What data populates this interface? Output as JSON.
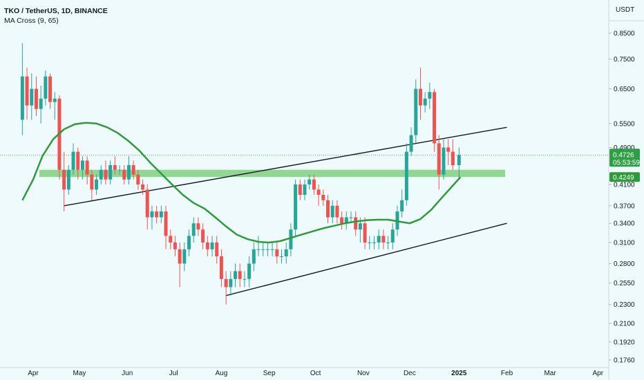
{
  "header": {
    "title": "TKO / TetherUS, 1D, BINANCE",
    "study": "MA Cross (9, 65)"
  },
  "currency": "USDT",
  "chart_data": {
    "type": "candlestick",
    "symbol": "TKO / TetherUS",
    "interval": "1D",
    "exchange": "BINANCE",
    "y_scale": "log",
    "y_ticks": [
      "0.8500",
      "0.7500",
      "0.6500",
      "0.5500",
      "0.4900",
      "0.4100",
      "0.3700",
      "0.3400",
      "0.3100",
      "0.2800",
      "0.2550",
      "0.2300",
      "0.2100",
      "0.1920",
      "0.1760"
    ],
    "x_ticks": [
      "Apr",
      "May",
      "Jun",
      "Jul",
      "Aug",
      "Sep",
      "Oct",
      "Nov",
      "Dec",
      "2025",
      "Feb",
      "Mar",
      "Apr"
    ],
    "last_price": "0.4726",
    "countdown": "05:53:59",
    "ma_value": "0.4249",
    "colors": {
      "up": "#26a69a",
      "down": "#ef5350",
      "ma": "#2e9a3a",
      "zone": "#7fd17f",
      "price_label": "#2f9e44"
    },
    "ohlc": [
      [
        "Mar 25",
        0.56,
        0.81,
        0.52,
        0.69
      ],
      [
        "Mar 28",
        0.69,
        0.72,
        0.56,
        0.6
      ],
      [
        "Mar 31",
        0.6,
        0.7,
        0.56,
        0.65
      ],
      [
        "Apr 3",
        0.65,
        0.69,
        0.57,
        0.59
      ],
      [
        "Apr 6",
        0.59,
        0.66,
        0.55,
        0.62
      ],
      [
        "Apr 9",
        0.62,
        0.71,
        0.6,
        0.69
      ],
      [
        "Apr 12",
        0.69,
        0.7,
        0.59,
        0.61
      ],
      [
        "Apr 15",
        0.61,
        0.64,
        0.56,
        0.62
      ],
      [
        "Apr 18",
        0.62,
        0.63,
        0.42,
        0.44
      ],
      [
        "Apr 21",
        0.44,
        0.48,
        0.36,
        0.4
      ],
      [
        "Apr 24",
        0.4,
        0.45,
        0.39,
        0.44
      ],
      [
        "Apr 27",
        0.44,
        0.5,
        0.43,
        0.48
      ],
      [
        "Apr 30",
        0.48,
        0.49,
        0.42,
        0.44
      ],
      [
        "May 3",
        0.44,
        0.47,
        0.42,
        0.46
      ],
      [
        "May 6",
        0.46,
        0.47,
        0.41,
        0.43
      ],
      [
        "May 9",
        0.43,
        0.44,
        0.38,
        0.4
      ],
      [
        "May 12",
        0.4,
        0.43,
        0.39,
        0.42
      ],
      [
        "May 15",
        0.42,
        0.45,
        0.41,
        0.44
      ],
      [
        "May 18",
        0.44,
        0.46,
        0.41,
        0.42
      ],
      [
        "May 21",
        0.42,
        0.46,
        0.41,
        0.45
      ],
      [
        "May 24",
        0.45,
        0.47,
        0.43,
        0.44
      ],
      [
        "May 27",
        0.44,
        0.45,
        0.43,
        0.44
      ],
      [
        "May 30",
        0.44,
        0.45,
        0.41,
        0.42
      ],
      [
        "Jun 2",
        0.42,
        0.47,
        0.41,
        0.45
      ],
      [
        "Jun 5",
        0.45,
        0.46,
        0.42,
        0.43
      ],
      [
        "Jun 8",
        0.43,
        0.44,
        0.4,
        0.41
      ],
      [
        "Jun 11",
        0.41,
        0.42,
        0.39,
        0.4
      ],
      [
        "Jun 14",
        0.4,
        0.41,
        0.33,
        0.35
      ],
      [
        "Jun 17",
        0.35,
        0.37,
        0.33,
        0.36
      ],
      [
        "Jun 20",
        0.36,
        0.37,
        0.34,
        0.35
      ],
      [
        "Jun 23",
        0.35,
        0.37,
        0.34,
        0.36
      ],
      [
        "Jun 26",
        0.36,
        0.37,
        0.3,
        0.32
      ],
      [
        "Jun 29",
        0.32,
        0.33,
        0.3,
        0.31
      ],
      [
        "Jul 2",
        0.31,
        0.32,
        0.29,
        0.3
      ],
      [
        "Jul 5",
        0.3,
        0.31,
        0.25,
        0.28
      ],
      [
        "Jul 8",
        0.28,
        0.31,
        0.27,
        0.3
      ],
      [
        "Jul 11",
        0.3,
        0.33,
        0.29,
        0.32
      ],
      [
        "Jul 14",
        0.32,
        0.35,
        0.31,
        0.34
      ],
      [
        "Jul 17",
        0.34,
        0.35,
        0.32,
        0.33
      ],
      [
        "Jul 20",
        0.33,
        0.34,
        0.3,
        0.31
      ],
      [
        "Jul 23",
        0.31,
        0.32,
        0.29,
        0.3
      ],
      [
        "Jul 26",
        0.3,
        0.32,
        0.29,
        0.31
      ],
      [
        "Jul 29",
        0.31,
        0.32,
        0.28,
        0.29
      ],
      [
        "Aug 1",
        0.29,
        0.3,
        0.25,
        0.26
      ],
      [
        "Aug 4",
        0.26,
        0.27,
        0.23,
        0.25
      ],
      [
        "Aug 7",
        0.25,
        0.27,
        0.24,
        0.26
      ],
      [
        "Aug 10",
        0.26,
        0.28,
        0.25,
        0.27
      ],
      [
        "Aug 13",
        0.27,
        0.28,
        0.25,
        0.26
      ],
      [
        "Aug 16",
        0.26,
        0.27,
        0.25,
        0.26
      ],
      [
        "Aug 19",
        0.26,
        0.29,
        0.25,
        0.28
      ],
      [
        "Aug 22",
        0.28,
        0.31,
        0.27,
        0.3
      ],
      [
        "Aug 25",
        0.3,
        0.32,
        0.29,
        0.3
      ],
      [
        "Aug 28",
        0.3,
        0.31,
        0.29,
        0.3
      ],
      [
        "Aug 31",
        0.3,
        0.31,
        0.29,
        0.3
      ],
      [
        "Sep 3",
        0.3,
        0.31,
        0.29,
        0.3
      ],
      [
        "Sep 6",
        0.3,
        0.31,
        0.28,
        0.29
      ],
      [
        "Sep 9",
        0.29,
        0.3,
        0.28,
        0.29
      ],
      [
        "Sep 12",
        0.29,
        0.31,
        0.28,
        0.3
      ],
      [
        "Sep 15",
        0.3,
        0.34,
        0.29,
        0.33
      ],
      [
        "Sep 18",
        0.33,
        0.42,
        0.32,
        0.41
      ],
      [
        "Sep 21",
        0.41,
        0.42,
        0.38,
        0.39
      ],
      [
        "Sep 24",
        0.39,
        0.42,
        0.38,
        0.41
      ],
      [
        "Sep 27",
        0.41,
        0.43,
        0.4,
        0.42
      ],
      [
        "Sep 30",
        0.42,
        0.43,
        0.39,
        0.4
      ],
      [
        "Oct 3",
        0.4,
        0.41,
        0.37,
        0.39
      ],
      [
        "Oct 6",
        0.39,
        0.4,
        0.37,
        0.38
      ],
      [
        "Oct 9",
        0.38,
        0.39,
        0.34,
        0.35
      ],
      [
        "Oct 12",
        0.35,
        0.38,
        0.34,
        0.37
      ],
      [
        "Oct 15",
        0.37,
        0.38,
        0.34,
        0.35
      ],
      [
        "Oct 18",
        0.35,
        0.36,
        0.33,
        0.34
      ],
      [
        "Oct 21",
        0.34,
        0.36,
        0.33,
        0.35
      ],
      [
        "Oct 24",
        0.35,
        0.36,
        0.34,
        0.35
      ],
      [
        "Oct 27",
        0.35,
        0.36,
        0.32,
        0.33
      ],
      [
        "Oct 30",
        0.33,
        0.35,
        0.31,
        0.34
      ],
      [
        "Nov 2",
        0.34,
        0.35,
        0.3,
        0.31
      ],
      [
        "Nov 5",
        0.31,
        0.32,
        0.3,
        0.31
      ],
      [
        "Nov 8",
        0.31,
        0.32,
        0.3,
        0.31
      ],
      [
        "Nov 11",
        0.31,
        0.33,
        0.3,
        0.32
      ],
      [
        "Nov 14",
        0.32,
        0.33,
        0.3,
        0.31
      ],
      [
        "Nov 17",
        0.31,
        0.32,
        0.3,
        0.31
      ],
      [
        "Nov 20",
        0.31,
        0.34,
        0.3,
        0.33
      ],
      [
        "Nov 23",
        0.33,
        0.37,
        0.32,
        0.36
      ],
      [
        "Nov 26",
        0.36,
        0.4,
        0.35,
        0.38
      ],
      [
        "Nov 29",
        0.38,
        0.5,
        0.37,
        0.48
      ],
      [
        "Dec 2",
        0.48,
        0.54,
        0.47,
        0.52
      ],
      [
        "Dec 5",
        0.52,
        0.68,
        0.5,
        0.65
      ],
      [
        "Dec 8",
        0.65,
        0.72,
        0.56,
        0.6
      ],
      [
        "Dec 11",
        0.6,
        0.64,
        0.58,
        0.62
      ],
      [
        "Dec 14",
        0.62,
        0.67,
        0.59,
        0.64
      ],
      [
        "Dec 17",
        0.64,
        0.65,
        0.48,
        0.5
      ],
      [
        "Dec 20",
        0.5,
        0.52,
        0.4,
        0.43
      ],
      [
        "Dec 23",
        0.43,
        0.51,
        0.42,
        0.49
      ],
      [
        "Dec 26",
        0.49,
        0.51,
        0.45,
        0.48
      ],
      [
        "Dec 29",
        0.48,
        0.51,
        0.44,
        0.45
      ],
      [
        "Jan 1",
        0.45,
        0.49,
        0.42,
        0.4726
      ]
    ],
    "ma_series": [
      [
        "Mar 25",
        0.38
      ],
      [
        "Apr 1",
        0.42
      ],
      [
        "Apr 7",
        0.47
      ],
      [
        "Apr 14",
        0.51
      ],
      [
        "Apr 21",
        0.535
      ],
      [
        "Apr 28",
        0.548
      ],
      [
        "May 5",
        0.552
      ],
      [
        "May 12",
        0.55
      ],
      [
        "May 19",
        0.54
      ],
      [
        "May 26",
        0.525
      ],
      [
        "Jun 2",
        0.505
      ],
      [
        "Jun 9",
        0.482
      ],
      [
        "Jun 16",
        0.455
      ],
      [
        "Jun 23",
        0.432
      ],
      [
        "Jun 30",
        0.41
      ],
      [
        "Jul 7",
        0.39
      ],
      [
        "Jul 14",
        0.375
      ],
      [
        "Jul 21",
        0.365
      ],
      [
        "Jul 28",
        0.35
      ],
      [
        "Aug 4",
        0.335
      ],
      [
        "Aug 11",
        0.322
      ],
      [
        "Aug 18",
        0.315
      ],
      [
        "Aug 25",
        0.311
      ],
      [
        "Sep 1",
        0.31
      ],
      [
        "Sep 8",
        0.312
      ],
      [
        "Sep 15",
        0.317
      ],
      [
        "Sep 22",
        0.322
      ],
      [
        "Sep 29",
        0.327
      ],
      [
        "Oct 6",
        0.332
      ],
      [
        "Oct 13",
        0.336
      ],
      [
        "Oct 20",
        0.34
      ],
      [
        "Oct 27",
        0.343
      ],
      [
        "Nov 3",
        0.345
      ],
      [
        "Nov 10",
        0.346
      ],
      [
        "Nov 17",
        0.346
      ],
      [
        "Nov 24",
        0.343
      ],
      [
        "Dec 1",
        0.34
      ],
      [
        "Dec 8",
        0.347
      ],
      [
        "Dec 15",
        0.363
      ],
      [
        "Dec 22",
        0.385
      ],
      [
        "Dec 29",
        0.408
      ],
      [
        "Jan 2",
        0.4249
      ]
    ],
    "trendlines": [
      {
        "from": [
          "Apr 21",
          0.37
        ],
        "to": [
          "Feb 1",
          0.54
        ]
      },
      {
        "from": [
          "Aug 4",
          0.24
        ],
        "to": [
          "Feb 1",
          0.34
        ]
      }
    ],
    "zone": {
      "low": 0.425,
      "high": 0.44
    },
    "hline": 0.4726
  }
}
